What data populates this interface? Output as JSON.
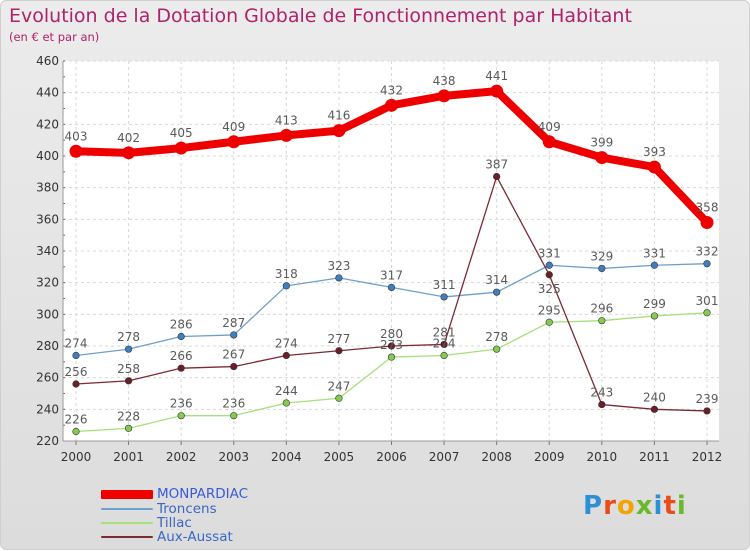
{
  "title": "Evolution de la Dotation Globale de Fonctionnement par Habitant",
  "subtitle": "(en € et par an)",
  "brand": {
    "text": "Proxiti",
    "letter_colors": [
      "#2d8fd6",
      "#e84c17",
      "#f2a400",
      "#6ab92b",
      "#2d8fd6",
      "#e84c17",
      "#6ab92b"
    ]
  },
  "chart_data": {
    "type": "line",
    "x": [
      "2000",
      "2001",
      "2002",
      "2003",
      "2004",
      "2005",
      "2006",
      "2007",
      "2008",
      "2009",
      "2010",
      "2011",
      "2012"
    ],
    "ylim": [
      220,
      460
    ],
    "yticks": [
      220,
      240,
      260,
      280,
      300,
      320,
      340,
      360,
      380,
      400,
      420,
      440,
      460
    ],
    "grid": true,
    "legend_position": "bottom-left",
    "series": [
      {
        "name": "MONPARDIAC",
        "values": [
          403,
          402,
          405,
          409,
          413,
          416,
          432,
          438,
          441,
          409,
          399,
          393,
          358
        ],
        "color": "#ee0000",
        "marker_color": "#ee0000",
        "label_color": "#5a5a5a",
        "label_pos": [
          "above",
          "above",
          "above",
          "above",
          "above",
          "above",
          "above",
          "above",
          "above",
          "above",
          "above",
          "above",
          "above"
        ],
        "thick": true
      },
      {
        "name": "Troncens",
        "values": [
          274,
          278,
          286,
          287,
          318,
          323,
          317,
          311,
          314,
          331,
          329,
          331,
          332
        ],
        "color": "#6d9fcc",
        "marker_color": "#3f7fc0",
        "label_color": "#5a5a5a",
        "label_pos": [
          "above",
          "above",
          "above",
          "above",
          "above",
          "above",
          "above",
          "above",
          "above",
          "above",
          "above",
          "above",
          "above"
        ],
        "thick": false
      },
      {
        "name": "Tillac",
        "values": [
          226,
          228,
          236,
          236,
          244,
          247,
          273,
          274,
          278,
          295,
          296,
          299,
          301
        ],
        "color": "#a6df7c",
        "marker_color": "#84cc50",
        "label_color": "#5a5a5a",
        "label_pos": [
          "above",
          "above",
          "above",
          "above",
          "above",
          "above",
          "above",
          "above",
          "above",
          "above",
          "above",
          "above",
          "above"
        ],
        "thick": false
      },
      {
        "name": "Aux-Aussat",
        "values": [
          256,
          258,
          266,
          267,
          274,
          277,
          280,
          281,
          387,
          325,
          243,
          240,
          239
        ],
        "color": "#7a2a33",
        "marker_color": "#6a1f28",
        "label_color": "#5a5a5a",
        "label_pos": [
          "above",
          "above",
          "above",
          "above",
          "above",
          "above",
          "above",
          "above",
          "above",
          "below",
          "above",
          "above",
          "above"
        ],
        "thick": false
      }
    ]
  }
}
